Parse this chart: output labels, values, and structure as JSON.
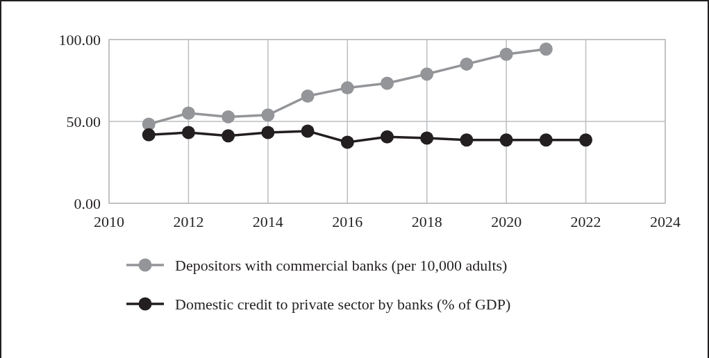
{
  "chart_data": {
    "type": "line",
    "x": [
      2011,
      2012,
      2013,
      2014,
      2015,
      2016,
      2017,
      2018,
      2019,
      2020,
      2021,
      2022
    ],
    "series": [
      {
        "name": "Depositors with commercial banks (per 10,000 adults)",
        "color": "#939598",
        "values": [
          48.3,
          55.1,
          52.8,
          53.9,
          65.5,
          70.5,
          73.3,
          78.9,
          85.0,
          91.0,
          94.2,
          null
        ]
      },
      {
        "name": "Domestic credit to private sector by banks (% of GDP)",
        "color": "#231f20",
        "values": [
          41.8,
          43.2,
          41.2,
          43.2,
          44.1,
          37.3,
          40.6,
          39.8,
          38.7,
          38.7,
          38.7,
          38.7
        ]
      }
    ],
    "xlim": [
      2010,
      2024
    ],
    "xticks": [
      2010,
      2012,
      2014,
      2016,
      2018,
      2020,
      2022,
      2024
    ],
    "ylim": [
      0,
      100
    ],
    "yticks": [
      {
        "value": 0,
        "label": "0.00"
      },
      {
        "value": 50,
        "label": "50.00"
      },
      {
        "value": 100,
        "label": "100.00"
      }
    ],
    "grid": true,
    "legend": "bottom",
    "marker": "circle",
    "line_style": "solid"
  }
}
